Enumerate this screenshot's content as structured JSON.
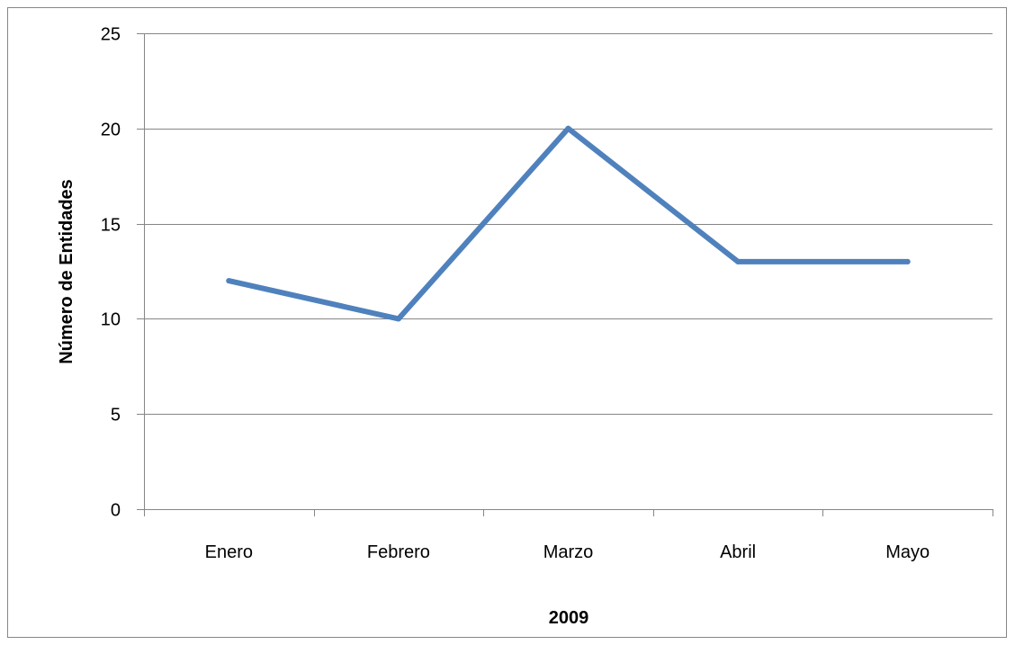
{
  "chart_data": {
    "type": "line",
    "categories": [
      "Enero",
      "Febrero",
      "Marzo",
      "Abril",
      "Mayo"
    ],
    "series": [
      {
        "values": [
          12,
          10,
          20,
          13,
          13
        ],
        "color": "#4f81bd"
      }
    ],
    "xlabel": "2009",
    "ylabel": "Número de Entidades",
    "ylim": [
      0,
      25
    ],
    "yticks": [
      0,
      5,
      10,
      15,
      20,
      25
    ],
    "grid": "horizontal",
    "legend": "none",
    "colors": {
      "gridline": "#868686",
      "axis": "#868686",
      "border": "#868686"
    }
  }
}
